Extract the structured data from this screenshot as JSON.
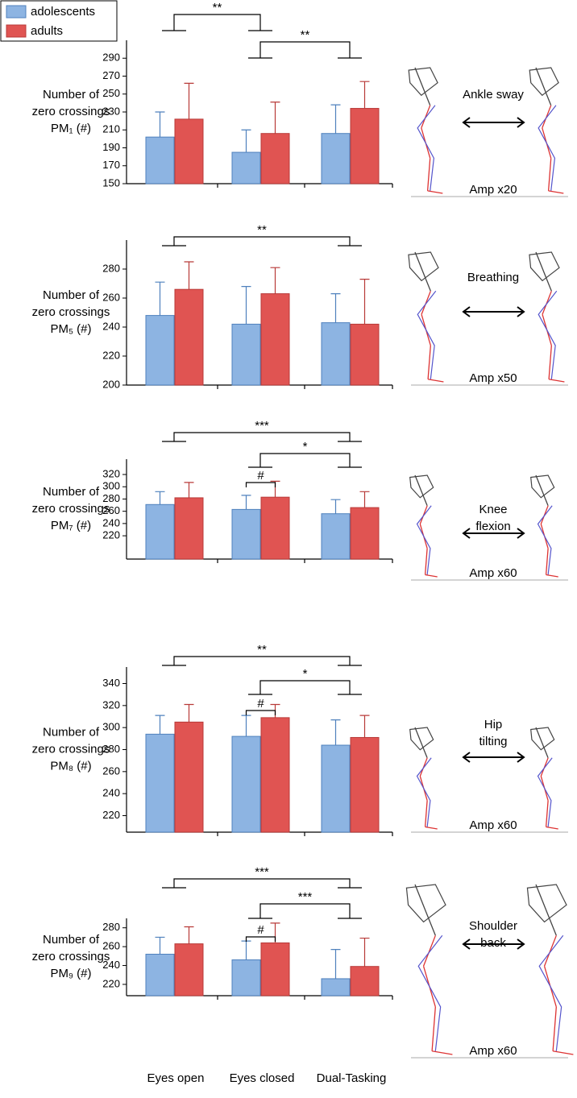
{
  "chart_data": [
    {
      "type": "bar",
      "ylabel": [
        "Number of",
        "zero crossings",
        "PM₁ (#)"
      ],
      "categories": [
        null,
        null,
        null
      ],
      "series": [
        {
          "name": "adolescents",
          "color": "#8db4e2",
          "values": [
            202,
            185,
            206
          ],
          "errors": [
            28,
            25,
            32
          ]
        },
        {
          "name": "adults",
          "color": "#e05452",
          "values": [
            222,
            206,
            234
          ],
          "errors": [
            40,
            35,
            30
          ]
        }
      ],
      "ylim": [
        150,
        310
      ],
      "yticks": [
        150,
        170,
        190,
        210,
        230,
        250,
        270,
        290
      ],
      "legend": "upper left",
      "annotations": [
        {
          "label": "**",
          "from": 0,
          "to": 1
        },
        {
          "label": "**",
          "from": 1,
          "to": 2
        }
      ],
      "figure_label": [
        "Ankle sway"
      ],
      "amplitude": "Amp x20"
    },
    {
      "type": "bar",
      "ylabel": [
        "Number of",
        "zero crossings",
        "PM₅ (#)"
      ],
      "categories": [
        null,
        null,
        null
      ],
      "series": [
        {
          "color": "#8db4e2",
          "values": [
            248,
            242,
            243
          ],
          "errors": [
            23,
            26,
            20
          ]
        },
        {
          "color": "#e05452",
          "values": [
            266,
            263,
            242
          ],
          "errors": [
            19,
            18,
            31
          ]
        }
      ],
      "ylim": [
        200,
        300
      ],
      "yticks": [
        200,
        220,
        240,
        260,
        280
      ],
      "annotations": [
        {
          "label": "**",
          "from": 0,
          "to": 2
        }
      ],
      "figure_label": [
        "Breathing"
      ],
      "amplitude": "Amp x50"
    },
    {
      "type": "bar",
      "ylabel": [
        "Number of",
        "zero crossings",
        "PM₇ (#)"
      ],
      "categories": [
        null,
        null,
        null
      ],
      "series": [
        {
          "color": "#8db4e2",
          "values": [
            271,
            263,
            256
          ],
          "errors": [
            21,
            23,
            23
          ]
        },
        {
          "color": "#e05452",
          "values": [
            282,
            283,
            266
          ],
          "errors": [
            25,
            26,
            26
          ]
        }
      ],
      "ylim": [
        182,
        345
      ],
      "yticks": [
        220,
        240,
        260,
        280,
        300,
        320
      ],
      "annotations": [
        {
          "label": "***",
          "from": 0,
          "to": 2
        },
        {
          "label": "*",
          "from": 1,
          "to": 2
        },
        {
          "label": "#",
          "category": 1
        }
      ],
      "figure_label": [
        "Knee",
        "flexion"
      ],
      "amplitude": "Amp x60"
    },
    {
      "type": "bar",
      "ylabel": [
        "Number of",
        "zero crossings",
        "PM₈ (#)"
      ],
      "categories": [
        null,
        null,
        null
      ],
      "series": [
        {
          "color": "#8db4e2",
          "values": [
            294,
            292,
            284
          ],
          "errors": [
            17,
            19,
            23
          ]
        },
        {
          "color": "#e05452",
          "values": [
            305,
            309,
            291
          ],
          "errors": [
            16,
            12,
            20
          ]
        }
      ],
      "ylim": [
        205,
        355
      ],
      "yticks": [
        220,
        240,
        260,
        280,
        300,
        320,
        340
      ],
      "annotations": [
        {
          "label": "**",
          "from": 0,
          "to": 2
        },
        {
          "label": "*",
          "from": 1,
          "to": 2
        },
        {
          "label": "#",
          "category": 1
        }
      ],
      "figure_label": [
        "Hip",
        "tilting"
      ],
      "amplitude": "Amp x60"
    },
    {
      "type": "bar",
      "ylabel": [
        "Number of",
        "zero crossings",
        "PM₉ (#)"
      ],
      "categories": [
        "Eyes open",
        "Eyes closed",
        "Dual-Tasking"
      ],
      "series": [
        {
          "color": "#8db4e2",
          "values": [
            252,
            246,
            226
          ],
          "errors": [
            18,
            20,
            31
          ]
        },
        {
          "color": "#e05452",
          "values": [
            263,
            264,
            239
          ],
          "errors": [
            18,
            21,
            30
          ]
        }
      ],
      "ylim": [
        208,
        290
      ],
      "yticks": [
        220,
        240,
        260,
        280
      ],
      "annotations": [
        {
          "label": "***",
          "from": 0,
          "to": 2
        },
        {
          "label": "***",
          "from": 1,
          "to": 2
        },
        {
          "label": "#",
          "category": 1
        }
      ],
      "figure_label": [
        "Shoulder",
        "back"
      ],
      "amplitude": "Amp x60"
    }
  ]
}
